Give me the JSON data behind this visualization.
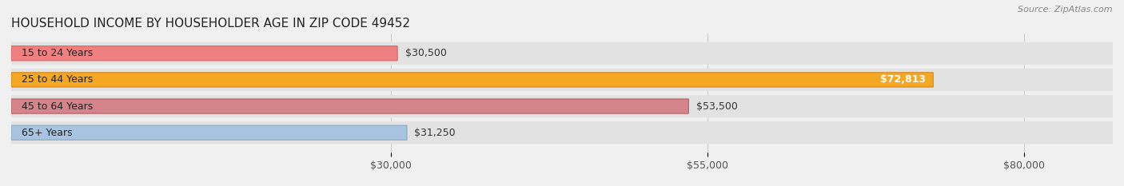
{
  "title": "HOUSEHOLD INCOME BY HOUSEHOLDER AGE IN ZIP CODE 49452",
  "source": "Source: ZipAtlas.com",
  "categories": [
    "15 to 24 Years",
    "25 to 44 Years",
    "45 to 64 Years",
    "65+ Years"
  ],
  "values": [
    30500,
    72813,
    53500,
    31250
  ],
  "bar_colors": [
    "#f08080",
    "#f5a623",
    "#d4848a",
    "#a8c4e0"
  ],
  "bar_edge_colors": [
    "#e06060",
    "#d4851a",
    "#b86068",
    "#88a8c8"
  ],
  "value_labels": [
    "$30,500",
    "$72,813",
    "$53,500",
    "$31,250"
  ],
  "label_inside": [
    false,
    true,
    false,
    false
  ],
  "xlim_min": 0,
  "xlim_max": 87000,
  "xticks": [
    30000,
    55000,
    80000
  ],
  "xtick_labels": [
    "$30,000",
    "$55,000",
    "$80,000"
  ],
  "background_color": "#f0f0f0",
  "bar_bg_color": "#e2e2e2",
  "title_fontsize": 11,
  "source_fontsize": 8,
  "tick_fontsize": 9,
  "bar_label_fontsize": 9,
  "category_fontsize": 9
}
